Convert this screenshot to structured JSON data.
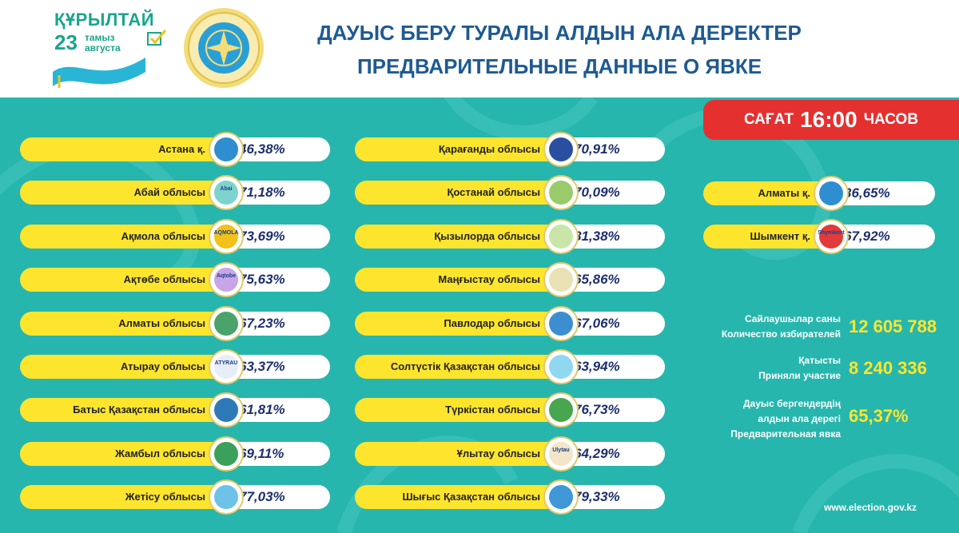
{
  "logo": {
    "kurultai_word": "ҚҰРЫЛТАЙ",
    "day": "23",
    "month_kz": "тамыз",
    "month_ru": "августа"
  },
  "title": {
    "line1": "ДАУЫС БЕРУ ТУРАЛЫ АЛДЫН АЛА ДЕРЕКТЕР",
    "line2": "ПРЕДВАРИТЕЛЬНЫЕ ДАННЫЕ О ЯВКЕ"
  },
  "time": {
    "prefix": "САҒАТ",
    "value": "16:00",
    "suffix": "ЧАСОВ"
  },
  "regions_left": [
    {
      "name": "Астана қ.",
      "pct": "46,38%",
      "badge": "astana-emblem",
      "color": "#2f8ed0",
      "badge_text": ""
    },
    {
      "name": "Абай облысы",
      "pct": "71,18%",
      "badge": "abai-emblem",
      "color": "#7fd3cf",
      "badge_text": "Abai"
    },
    {
      "name": "Ақмола облысы",
      "pct": "73,69%",
      "badge": "akmola-emblem",
      "color": "#f2c21b",
      "badge_text": "AQMOLA"
    },
    {
      "name": "Ақтөбе облысы",
      "pct": "75,63%",
      "badge": "aktobe-emblem",
      "color": "#c8a4e8",
      "badge_text": "Aqtobe"
    },
    {
      "name": "Алматы облысы",
      "pct": "67,23%",
      "badge": "almaty-region-emblem",
      "color": "#4aa36a",
      "badge_text": ""
    },
    {
      "name": "Атырау облысы",
      "pct": "63,37%",
      "badge": "atyrau-emblem",
      "color": "#e8eef8",
      "badge_text": "ATYRAU"
    },
    {
      "name": "Батыс Қазақстан облысы",
      "pct": "61,81%",
      "badge": "west-kazakhstan-emblem",
      "color": "#2e7ab8",
      "badge_text": ""
    },
    {
      "name": "Жамбыл облысы",
      "pct": "69,11%",
      "badge": "zhambyl-emblem",
      "color": "#3aa05a",
      "badge_text": ""
    },
    {
      "name": "Жетісу облысы",
      "pct": "77,03%",
      "badge": "zhetisu-emblem",
      "color": "#6ec2e8",
      "badge_text": ""
    }
  ],
  "regions_mid": [
    {
      "name": "Қарағанды облысы",
      "pct": "70,91%",
      "badge": "karaganda-emblem",
      "color": "#2a4fa0",
      "badge_text": ""
    },
    {
      "name": "Қостанай облысы",
      "pct": "70,09%",
      "badge": "kostanay-emblem",
      "color": "#9acb6a",
      "badge_text": ""
    },
    {
      "name": "Қызылорда облысы",
      "pct": "81,38%",
      "badge": "kyzylorda-emblem",
      "color": "#c9e6a8",
      "badge_text": ""
    },
    {
      "name": "Маңғыстау облысы",
      "pct": "65,86%",
      "badge": "mangystau-emblem",
      "color": "#e9e0b4",
      "badge_text": ""
    },
    {
      "name": "Павлодар облысы",
      "pct": "67,06%",
      "badge": "pavlodar-emblem",
      "color": "#3d8ed0",
      "badge_text": ""
    },
    {
      "name": "Солтүстік Қазақстан облысы",
      "pct": "63,94%",
      "badge": "north-kazakhstan-emblem",
      "color": "#8fd8f0",
      "badge_text": ""
    },
    {
      "name": "Түркістан облысы",
      "pct": "76,73%",
      "badge": "turkistan-emblem",
      "color": "#48a64e",
      "badge_text": ""
    },
    {
      "name": "Ұлытау облысы",
      "pct": "64,29%",
      "badge": "ulytau-emblem",
      "color": "#f3e6c8",
      "badge_text": "Ulytau"
    },
    {
      "name": "Шығыс Қазақстан облысы",
      "pct": "79,33%",
      "badge": "east-kazakhstan-emblem",
      "color": "#3f97d8",
      "badge_text": ""
    }
  ],
  "regions_right": [
    {
      "name": "Алматы қ.",
      "pct": "36,65%",
      "badge": "almaty-city-emblem",
      "color": "#2f8ed0",
      "badge_text": ""
    },
    {
      "name": "Шымкент қ.",
      "pct": "67,92%",
      "badge": "shymkent-emblem",
      "color": "#e33a3a",
      "badge_text": "Shymkent"
    }
  ],
  "stats": {
    "voters_kz": "Сайлаушылар саны",
    "voters_ru": "Количество избирателей",
    "voters_value": "12 605 788",
    "participated_kz": "Қатысты",
    "participated_ru": "Приняли участие",
    "participated_value": "8 240 336",
    "turnout_kz1": "Дауыс бергендердің",
    "turnout_kz2": "алдын ала дерегі",
    "turnout_ru": "Предварительная явка",
    "turnout_value": "65,37%"
  },
  "website": "www.election.gov.kz",
  "colors": {
    "teal": "#27b6ad",
    "yellow": "#fde52e",
    "red": "#e53030",
    "title_blue": "#1e5a92"
  }
}
